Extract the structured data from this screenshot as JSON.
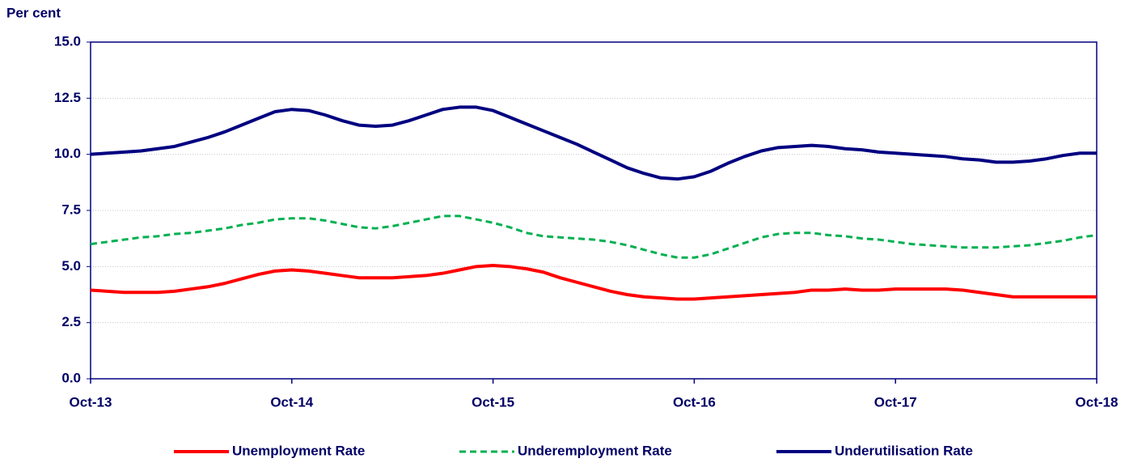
{
  "chart_data": {
    "type": "line",
    "y_axis_label": "Per cent",
    "categories": [
      "Oct-13",
      null,
      null,
      null,
      null,
      null,
      null,
      null,
      null,
      null,
      null,
      null,
      "Oct-14",
      null,
      null,
      null,
      null,
      null,
      null,
      null,
      null,
      null,
      null,
      null,
      "Oct-15",
      null,
      null,
      null,
      null,
      null,
      null,
      null,
      null,
      null,
      null,
      null,
      "Oct-16",
      null,
      null,
      null,
      null,
      null,
      null,
      null,
      null,
      null,
      null,
      null,
      "Oct-17",
      null,
      null,
      null,
      null,
      null,
      null,
      null,
      null,
      null,
      null,
      null,
      "Oct-18"
    ],
    "series": [
      {
        "name": "Unemployment Rate",
        "color": "#ff0000",
        "dash": "solid",
        "values": [
          3.95,
          3.9,
          3.85,
          3.85,
          3.85,
          3.9,
          4.0,
          4.1,
          4.25,
          4.45,
          4.65,
          4.8,
          4.85,
          4.8,
          4.7,
          4.6,
          4.5,
          4.5,
          4.5,
          4.55,
          4.6,
          4.7,
          4.85,
          5.0,
          5.05,
          5.0,
          4.9,
          4.75,
          4.5,
          4.3,
          4.1,
          3.9,
          3.75,
          3.65,
          3.6,
          3.55,
          3.55,
          3.6,
          3.65,
          3.7,
          3.75,
          3.8,
          3.85,
          3.95,
          3.95,
          4.0,
          3.95,
          3.95,
          4.0,
          4.0,
          4.0,
          4.0,
          3.95,
          3.85,
          3.75,
          3.65,
          3.65,
          3.65,
          3.65,
          3.65,
          3.65
        ]
      },
      {
        "name": "Underemployment Rate",
        "color": "#00b050",
        "dash": "dashed",
        "values": [
          6.0,
          6.1,
          6.2,
          6.3,
          6.35,
          6.45,
          6.5,
          6.6,
          6.7,
          6.85,
          6.95,
          7.1,
          7.15,
          7.15,
          7.05,
          6.9,
          6.75,
          6.7,
          6.8,
          6.95,
          7.1,
          7.25,
          7.25,
          7.1,
          6.95,
          6.75,
          6.5,
          6.35,
          6.3,
          6.25,
          6.2,
          6.1,
          5.95,
          5.75,
          5.55,
          5.4,
          5.4,
          5.55,
          5.8,
          6.05,
          6.3,
          6.45,
          6.5,
          6.5,
          6.4,
          6.35,
          6.25,
          6.2,
          6.1,
          6.0,
          5.95,
          5.9,
          5.85,
          5.85,
          5.85,
          5.9,
          5.95,
          6.05,
          6.15,
          6.3,
          6.4
        ]
      },
      {
        "name": "Underutilisation Rate",
        "color": "#000080",
        "dash": "solid",
        "values": [
          10.0,
          10.05,
          10.1,
          10.15,
          10.25,
          10.35,
          10.55,
          10.75,
          11.0,
          11.3,
          11.6,
          11.9,
          12.0,
          11.95,
          11.75,
          11.5,
          11.3,
          11.25,
          11.3,
          11.5,
          11.75,
          12.0,
          12.1,
          12.1,
          11.95,
          11.65,
          11.35,
          11.05,
          10.75,
          10.45,
          10.1,
          9.75,
          9.4,
          9.15,
          8.95,
          8.9,
          9.0,
          9.25,
          9.6,
          9.9,
          10.15,
          10.3,
          10.35,
          10.4,
          10.35,
          10.25,
          10.2,
          10.1,
          10.05,
          10.0,
          9.95,
          9.9,
          9.8,
          9.75,
          9.65,
          9.65,
          9.7,
          9.8,
          9.95,
          10.05,
          10.05
        ]
      }
    ],
    "ylim": [
      0,
      15
    ],
    "yticks": [
      {
        "value": 0,
        "label": "0.0"
      },
      2.5,
      {
        "value": 5,
        "label": "5.0"
      },
      7.5,
      {
        "value": 10,
        "label": "10.0"
      },
      12.5,
      {
        "value": 15,
        "label": "15.0"
      }
    ],
    "grid": true,
    "legend": "bottom"
  }
}
